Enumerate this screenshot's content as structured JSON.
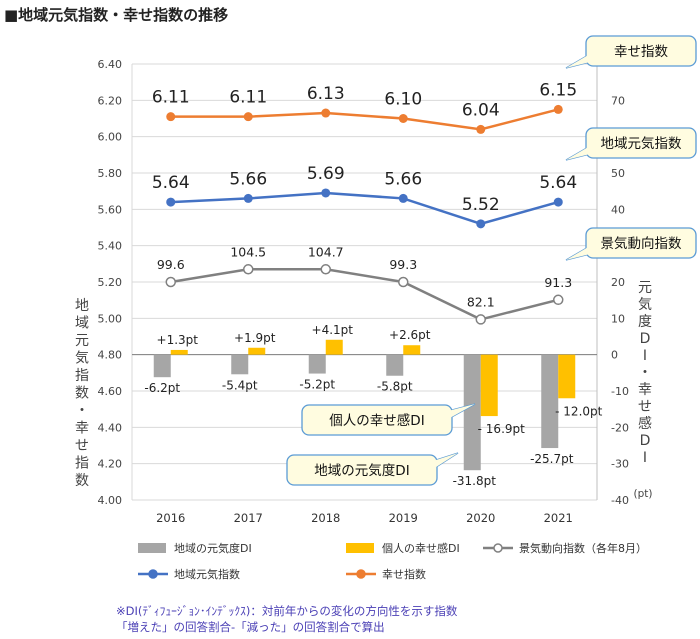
{
  "title": "■地域元気指数・幸せ指数の推移",
  "notes": [
    "※DI(ﾃﾞｨﾌｭｰｼﾞｮﾝ･ｲﾝﾃﾞｯｸｽ)：対前年からの変化の方向性を示す指数",
    "「増えた」の回答割合-「減った」の回答割合で算出"
  ],
  "colors": {
    "regional_di": "#a6a6a6",
    "happiness_di": "#ffc000",
    "business_index": "#808080",
    "regional_index": "#4472c4",
    "happiness_index": "#ed7d31",
    "callout_fill": "#fffce0",
    "callout_border": "#5b9bd5"
  },
  "chart_data": {
    "type": "bar",
    "categories": [
      "2016",
      "2017",
      "2018",
      "2019",
      "2020",
      "2021"
    ],
    "left_axis": {
      "label": "地域元気指数・幸せ指数",
      "range": [
        4.0,
        6.4
      ],
      "ticks": [
        "4.00",
        "4.20",
        "4.40",
        "4.60",
        "4.80",
        "5.00",
        "5.20",
        "5.40",
        "5.60",
        "5.80",
        "6.00",
        "6.20",
        "6.40"
      ]
    },
    "right_axis": {
      "label": "元気度DI・幸せ感DI",
      "unit": "(pt)",
      "range": [
        -40,
        80
      ],
      "ticks": [
        "-40",
        "-30",
        "-20",
        "-10",
        "0",
        "10",
        "20",
        "30",
        "40",
        "50",
        "60",
        "70"
      ]
    },
    "grid": true,
    "legend_position": "bottom",
    "bar_series": [
      {
        "name": "地域の元気度DI",
        "color_key": "regional_di",
        "values": [
          -6.2,
          -5.4,
          -5.2,
          -5.8,
          -31.8,
          -25.7
        ],
        "labels": [
          "-6.2pt",
          "-5.4pt",
          "-5.2pt",
          "-5.8pt",
          "-31.8pt",
          "-25.7pt"
        ]
      },
      {
        "name": "個人の幸せ感DI",
        "color_key": "happiness_di",
        "values": [
          1.3,
          1.9,
          4.1,
          2.6,
          -16.9,
          -12.0
        ],
        "labels": [
          "+1.3pt",
          "+1.9pt",
          "+4.1pt",
          "+2.6pt",
          "- 16.9pt",
          "- 12.0pt"
        ]
      }
    ],
    "line_series": [
      {
        "name": "景気動向指数（各年8月）",
        "axis": "right",
        "color_key": "business_index",
        "marker": "open",
        "values": [
          99.6,
          104.5,
          104.7,
          99.3,
          82.1,
          91.3
        ],
        "labels": [
          "99.6",
          "104.5",
          "104.7",
          "99.3",
          "82.1",
          "91.3"
        ],
        "plotted_right_axis_values": [
          20.0,
          23.5,
          23.5,
          20.0,
          9.7,
          15.1
        ]
      },
      {
        "name": "地域元気指数",
        "axis": "left",
        "color_key": "regional_index",
        "marker": "filled",
        "values": [
          5.64,
          5.66,
          5.69,
          5.66,
          5.52,
          5.64
        ],
        "labels": [
          "5.64",
          "5.66",
          "5.69",
          "5.66",
          "5.52",
          "5.64"
        ]
      },
      {
        "name": "幸せ指数",
        "axis": "left",
        "color_key": "happiness_index",
        "marker": "filled",
        "values": [
          6.11,
          6.11,
          6.13,
          6.1,
          6.04,
          6.15
        ],
        "labels": [
          "6.11",
          "6.11",
          "6.13",
          "6.10",
          "6.04",
          "6.15"
        ]
      }
    ],
    "callouts": [
      {
        "text": "幸せ指数",
        "target": "幸せ指数"
      },
      {
        "text": "地域元気指数",
        "target": "地域元気指数"
      },
      {
        "text": "景気動向指数",
        "target": "景気動向指数（各年8月）"
      },
      {
        "text": "個人の幸せ感DI",
        "target": "個人の幸せ感DI"
      },
      {
        "text": "地域の元気度DI",
        "target": "地域の元気度DI"
      }
    ]
  }
}
